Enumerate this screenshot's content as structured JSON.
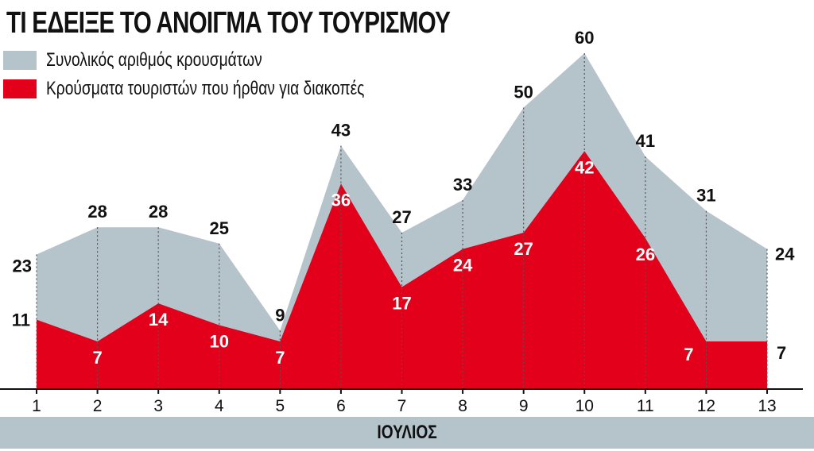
{
  "chart_data": {
    "type": "area",
    "title": "ΤΙ ΕΔΕΙΞΕ ΤΟ ΑΝΟΙΓΜΑ ΤΟΥ ΤΟΥΡΙΣΜΟΥ",
    "xlabel": "ΙΟΥΛΙΟΣ",
    "ylabel": "",
    "categories": [
      "1",
      "2",
      "3",
      "4",
      "5",
      "6",
      "7",
      "8",
      "9",
      "10",
      "11",
      "12",
      "13"
    ],
    "series": [
      {
        "name": "Συνολικός αριθμός κρουσμάτων",
        "color": "#b5c3cb",
        "values": [
          23,
          28,
          28,
          25,
          9,
          43,
          27,
          33,
          50,
          60,
          41,
          31,
          24
        ]
      },
      {
        "name": "Κρούσματα τουριστών που ήρθαν για διακοπές",
        "color": "#e2001a",
        "values": [
          11,
          7,
          14,
          10,
          7,
          36,
          17,
          24,
          27,
          42,
          26,
          7,
          7
        ]
      }
    ],
    "ylim": [
      0,
      60
    ],
    "grid": "vertical dotted lines at each day",
    "legend": "top-left"
  }
}
